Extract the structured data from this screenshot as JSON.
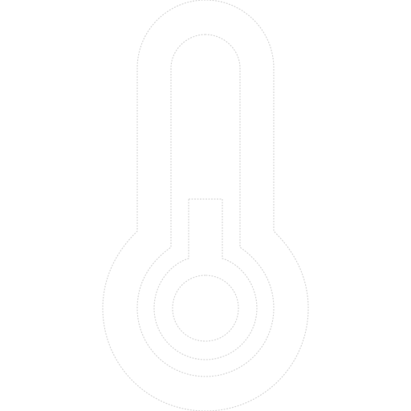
{
  "icon": {
    "name": "thermometer-icon",
    "fill_color": "#ffffff",
    "outline_color": "#d9d9d9",
    "background_color": "#ffffff"
  }
}
